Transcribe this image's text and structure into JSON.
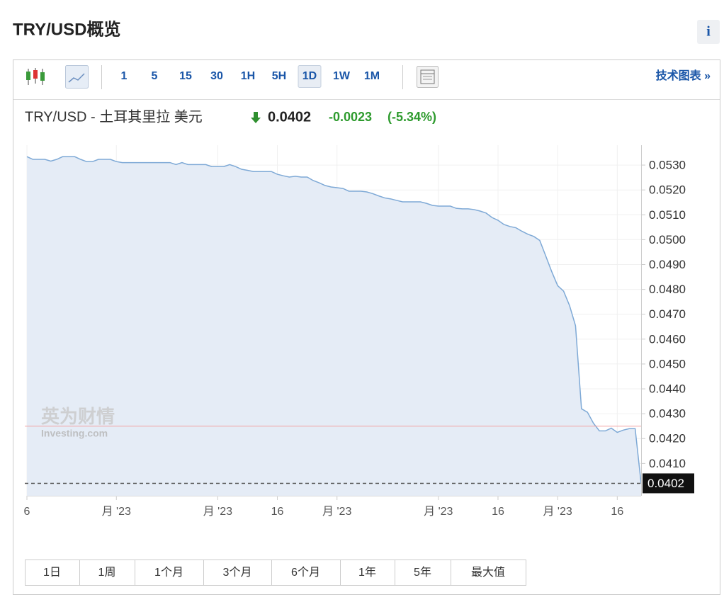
{
  "header": {
    "title": "TRY/USD概览",
    "info": "i"
  },
  "toolbar": {
    "intervals": [
      "1",
      "5",
      "15",
      "30",
      "1H",
      "5H",
      "1D",
      "1W",
      "1M"
    ],
    "selected": "1D",
    "link": "技术图表 »"
  },
  "quote": {
    "name": "TRY/USD - 土耳其里拉 美元",
    "price": "0.0402",
    "change": "-0.0023",
    "change_pct": "(-5.34%)"
  },
  "chart_data": {
    "type": "area",
    "watermark": {
      "brand": "英为财情",
      "site": "Investing.com"
    },
    "categories": [
      "6",
      null,
      null,
      null,
      null,
      null,
      null,
      null,
      null,
      null,
      null,
      null,
      null,
      null,
      null,
      "月 '23",
      null,
      null,
      null,
      null,
      null,
      null,
      null,
      null,
      null,
      null,
      null,
      null,
      null,
      null,
      null,
      null,
      "月 '23",
      null,
      null,
      null,
      null,
      null,
      null,
      null,
      null,
      null,
      "16",
      null,
      null,
      null,
      null,
      null,
      null,
      null,
      null,
      null,
      "月 '23",
      null,
      null,
      null,
      null,
      null,
      null,
      null,
      null,
      null,
      null,
      null,
      null,
      null,
      null,
      null,
      null,
      "月 '23",
      null,
      null,
      null,
      null,
      null,
      null,
      null,
      null,
      null,
      "16",
      null,
      null,
      null,
      null,
      null,
      null,
      null,
      null,
      null,
      "月 '23",
      null,
      null,
      null,
      null,
      null,
      null,
      null,
      null,
      null,
      "16",
      null,
      null,
      null,
      null
    ],
    "values": [
      0.05334,
      0.05323,
      0.05323,
      0.05323,
      0.05316,
      0.05323,
      0.05334,
      0.05334,
      0.05334,
      0.05323,
      0.05314,
      0.05314,
      0.05323,
      0.05323,
      0.05323,
      0.05314,
      0.0531,
      0.0531,
      0.0531,
      0.0531,
      0.0531,
      0.0531,
      0.0531,
      0.0531,
      0.0531,
      0.05302,
      0.0531,
      0.05302,
      0.05302,
      0.05302,
      0.05302,
      0.05294,
      0.05294,
      0.05294,
      0.05302,
      0.05294,
      0.05283,
      0.05279,
      0.05274,
      0.05274,
      0.05274,
      0.05274,
      0.05263,
      0.05257,
      0.05252,
      0.05255,
      0.05252,
      0.05252,
      0.05238,
      0.05229,
      0.05218,
      0.05212,
      0.05209,
      0.05206,
      0.05195,
      0.05195,
      0.05195,
      0.05192,
      0.05185,
      0.05176,
      0.05168,
      0.05164,
      0.05158,
      0.05152,
      0.05152,
      0.05152,
      0.05152,
      0.05146,
      0.05138,
      0.05135,
      0.05135,
      0.05135,
      0.05126,
      0.05124,
      0.05124,
      0.05121,
      0.05115,
      0.05107,
      0.05089,
      0.05078,
      0.05061,
      0.05053,
      0.05048,
      0.05034,
      0.05022,
      0.05013,
      0.04997,
      0.04935,
      0.04872,
      0.04815,
      0.04793,
      0.04735,
      0.04654,
      0.0432,
      0.04306,
      0.04262,
      0.04231,
      0.04231,
      0.04242,
      0.04225,
      0.04234,
      0.0424,
      0.0424,
      0.0402
    ],
    "color": "#7ea9d6",
    "fill": "#e5ecf6",
    "reference_line": 0.0425,
    "reference_color": "#f2a3a3",
    "ylim": [
      0.0397,
      0.0538
    ],
    "yticks": [
      {
        "value": 0.053,
        "label": "0.0530"
      },
      {
        "value": 0.052,
        "label": "0.0520"
      },
      {
        "value": 0.051,
        "label": "0.0510"
      },
      {
        "value": 0.05,
        "label": "0.0500"
      },
      {
        "value": 0.049,
        "label": "0.0490"
      },
      {
        "value": 0.048,
        "label": "0.0480"
      },
      {
        "value": 0.047,
        "label": "0.0470"
      },
      {
        "value": 0.046,
        "label": "0.0460"
      },
      {
        "value": 0.045,
        "label": "0.0450"
      },
      {
        "value": 0.044,
        "label": "0.0440"
      },
      {
        "value": 0.043,
        "label": "0.0430"
      },
      {
        "value": 0.042,
        "label": "0.0420"
      },
      {
        "value": 0.041,
        "label": "0.0410"
      }
    ],
    "grid": true
  },
  "ranges": [
    "1日",
    "1周",
    "1个月",
    "3个月",
    "6个月",
    "1年",
    "5年",
    "最大值"
  ]
}
